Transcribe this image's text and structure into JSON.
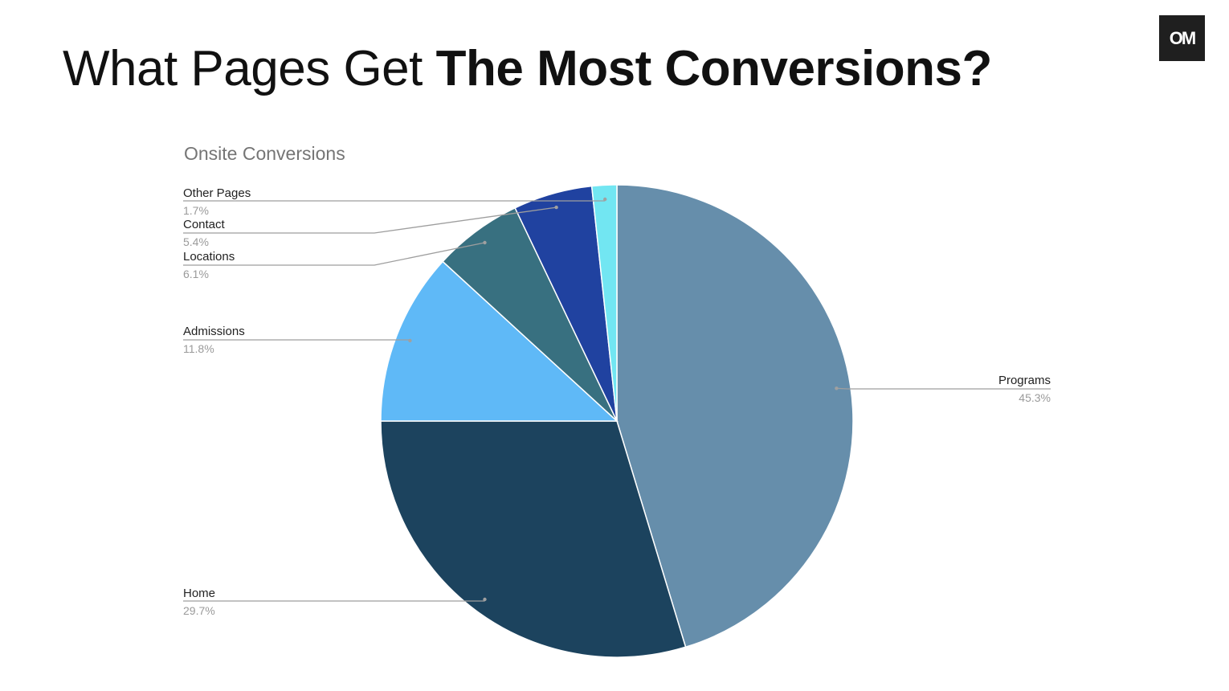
{
  "slide": {
    "title_regular": "What Pages Get ",
    "title_bold": "The Most Conversions?",
    "logo_text": "OM"
  },
  "chart_data": {
    "type": "pie",
    "title": "Onsite Conversions",
    "slices": [
      {
        "label": "Programs",
        "value": 45.3,
        "display": "45.3%",
        "color": "#668eab"
      },
      {
        "label": "Home",
        "value": 29.7,
        "display": "29.7%",
        "color": "#1c435e"
      },
      {
        "label": "Admissions",
        "value": 11.8,
        "display": "11.8%",
        "color": "#5fb9f7"
      },
      {
        "label": "Locations",
        "value": 6.1,
        "display": "6.1%",
        "color": "#387080"
      },
      {
        "label": "Contact",
        "value": 5.4,
        "display": "5.4%",
        "color": "#2042a0"
      },
      {
        "label": "Other Pages",
        "value": 1.7,
        "display": "1.7%",
        "color": "#72e6f2"
      }
    ],
    "start": "12 o'clock",
    "direction": "clockwise",
    "legend": "none",
    "labels": "leader lines with name and percentage"
  }
}
